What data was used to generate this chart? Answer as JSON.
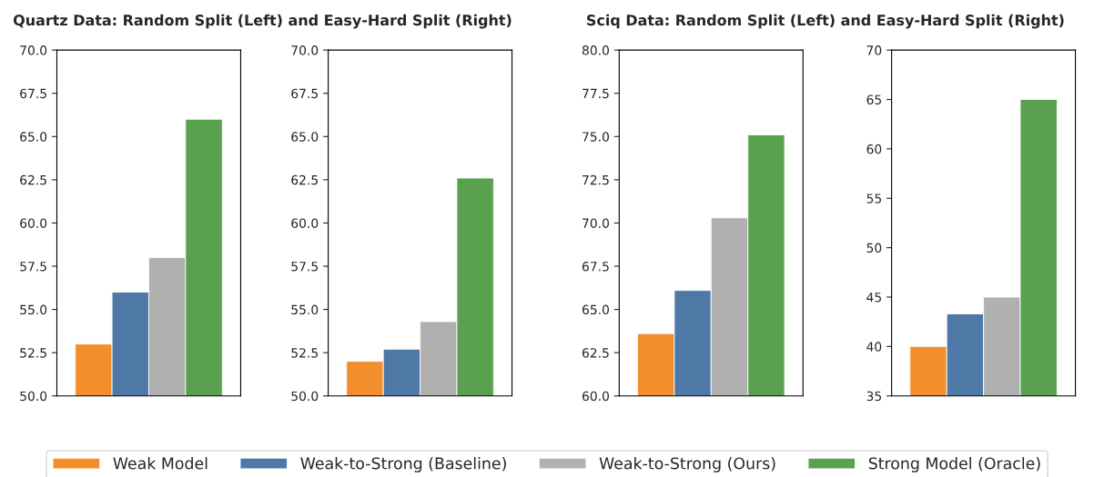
{
  "chart_data": [
    {
      "type": "bar",
      "title": "Quartz Data: Random Split (Left) and Easy-Hard Split (Right)",
      "categories": [
        null
      ],
      "ylim": [
        50,
        70
      ],
      "yticks": [
        {
          "value": 50,
          "label": "50.0"
        },
        {
          "value": 52.5,
          "label": "52.5"
        },
        {
          "value": 55,
          "label": "55.0"
        },
        {
          "value": 57.5,
          "label": "57.5"
        },
        {
          "value": 60,
          "label": "60.0"
        },
        {
          "value": 62.5,
          "label": "62.5"
        },
        {
          "value": 65,
          "label": "65.0"
        },
        {
          "value": 67.5,
          "label": "67.5"
        },
        {
          "value": 70,
          "label": "70.0"
        }
      ],
      "tick_labels": "y",
      "legend": "bottom",
      "series": [
        {
          "name": "Weak Model",
          "color": "#f28e2b",
          "values": [
            53.0
          ]
        },
        {
          "name": "Weak-to-Strong (Baseline)",
          "color": "#4e79a7",
          "values": [
            56.0
          ]
        },
        {
          "name": "Weak-to-Strong (Ours)",
          "color": "#b0b0b0",
          "values": [
            58.0
          ]
        },
        {
          "name": "Strong Model (Oracle)",
          "color": "#59a14f",
          "values": [
            66.0
          ]
        }
      ]
    },
    {
      "type": "bar",
      "categories": [
        null
      ],
      "ylim": [
        50,
        70
      ],
      "yticks": [
        {
          "value": 50,
          "label": "50.0"
        },
        {
          "value": 52.5,
          "label": "52.5"
        },
        {
          "value": 55,
          "label": "55.0"
        },
        {
          "value": 57.5,
          "label": "57.5"
        },
        {
          "value": 60,
          "label": "60.0"
        },
        {
          "value": 62.5,
          "label": "62.5"
        },
        {
          "value": 65,
          "label": "65.0"
        },
        {
          "value": 67.5,
          "label": "67.5"
        },
        {
          "value": 70,
          "label": "70.0"
        }
      ],
      "tick_labels": "y",
      "series": [
        {
          "color": "#f28e2b",
          "values": [
            52.0
          ]
        },
        {
          "color": "#4e79a7",
          "values": [
            52.7
          ]
        },
        {
          "color": "#b0b0b0",
          "values": [
            54.3
          ]
        },
        {
          "color": "#59a14f",
          "values": [
            62.6
          ]
        }
      ]
    },
    {
      "type": "bar",
      "title": "Sciq Data: Random Split (Left) and Easy-Hard Split (Right)",
      "categories": [
        null
      ],
      "ylim": [
        60,
        80
      ],
      "yticks": [
        {
          "value": 60,
          "label": "60.0"
        },
        {
          "value": 62.5,
          "label": "62.5"
        },
        {
          "value": 65,
          "label": "65.0"
        },
        {
          "value": 67.5,
          "label": "67.5"
        },
        {
          "value": 70,
          "label": "70.0"
        },
        {
          "value": 72.5,
          "label": "72.5"
        },
        {
          "value": 75,
          "label": "75.0"
        },
        {
          "value": 77.5,
          "label": "77.5"
        },
        {
          "value": 80,
          "label": "80.0"
        }
      ],
      "tick_labels": "y",
      "series": [
        {
          "color": "#f28e2b",
          "values": [
            63.6
          ]
        },
        {
          "color": "#4e79a7",
          "values": [
            66.1
          ]
        },
        {
          "color": "#b0b0b0",
          "values": [
            70.3
          ]
        },
        {
          "color": "#59a14f",
          "values": [
            75.1
          ]
        }
      ]
    },
    {
      "type": "bar",
      "categories": [
        null
      ],
      "ylim": [
        35,
        70
      ],
      "yticks": [
        35,
        40,
        45,
        50,
        55,
        60,
        65,
        70
      ],
      "tick_labels": "y",
      "series": [
        {
          "color": "#f28e2b",
          "values": [
            40.0
          ]
        },
        {
          "color": "#4e79a7",
          "values": [
            43.3
          ]
        },
        {
          "color": "#b0b0b0",
          "values": [
            45.0
          ]
        },
        {
          "color": "#59a14f",
          "values": [
            65.0
          ]
        }
      ]
    }
  ]
}
